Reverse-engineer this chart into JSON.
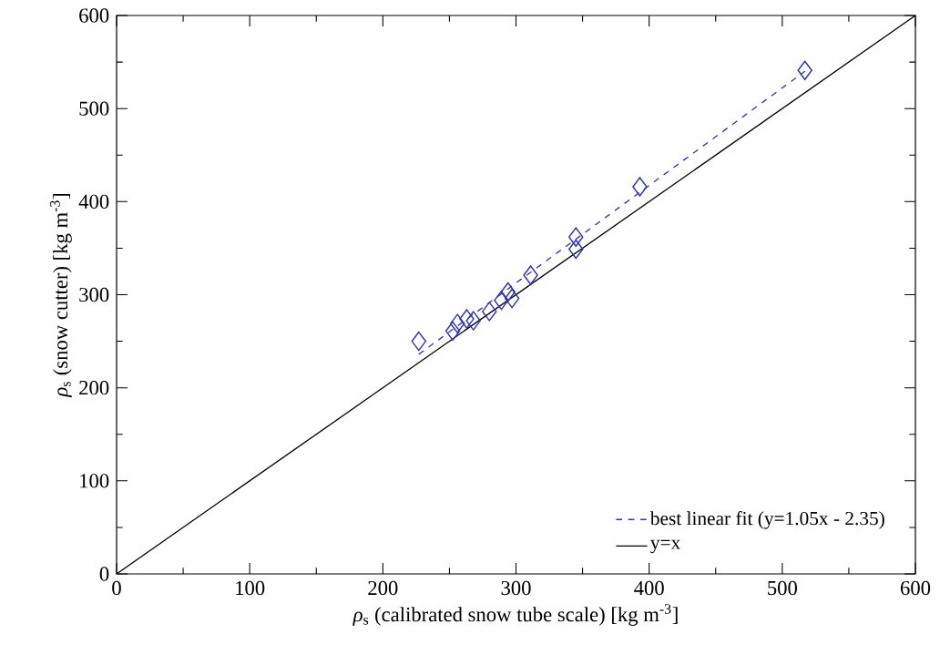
{
  "chart_data": {
    "type": "scatter",
    "xlabel": "*ρ*$_{s}$ (calibrated snow tube scale) [kg m$^{-3}$]",
    "ylabel": "*ρ*$_{s}$ (snow cutter) [kg m$^{-3}$]",
    "xlim": [
      0,
      600
    ],
    "ylim": [
      0,
      600
    ],
    "xticks": [
      0,
      100,
      200,
      300,
      400,
      500,
      600
    ],
    "yticks": [
      0,
      100,
      200,
      300,
      400,
      500,
      600
    ],
    "grid": false,
    "legend": "bottom right",
    "series": [
      {
        "color": "#3333b3",
        "marker": "diamond",
        "x": [
          227,
          252.5,
          256,
          263,
          268,
          280,
          289,
          294,
          297,
          311,
          345,
          345,
          393,
          517
        ],
        "values": [
          250,
          261,
          269,
          274,
          272,
          282,
          294,
          303,
          296,
          321,
          362,
          349,
          416,
          541
        ]
      },
      {
        "type": "line",
        "name": "best linear fit (y=1.05x - 2.35)",
        "color": "#3333b3",
        "line_style": "dashed",
        "x": [
          227,
          517
        ],
        "values": [
          236,
          540
        ]
      },
      {
        "type": "line",
        "name": "y=x",
        "color": "#000000",
        "line_style": "solid",
        "x": [
          0,
          600
        ],
        "values": [
          0,
          600
        ]
      }
    ]
  }
}
